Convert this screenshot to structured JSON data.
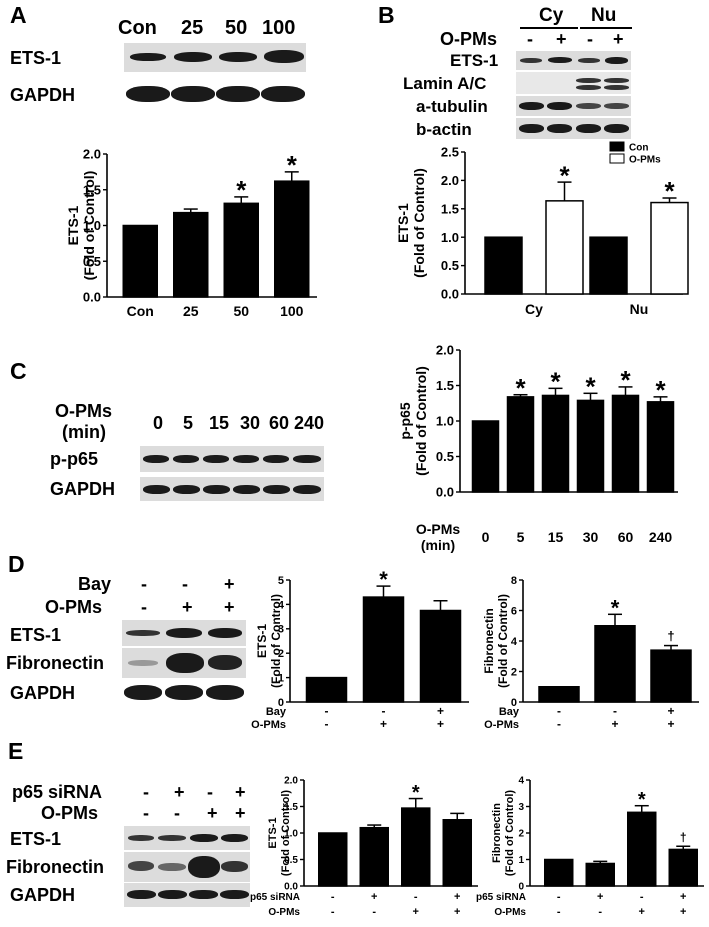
{
  "figure": {
    "panelA": {
      "letter": "A",
      "lanes": [
        "Con",
        "25",
        "50",
        "100"
      ],
      "blot_rows": [
        "ETS-1",
        "GAPDH"
      ]
    },
    "panelB": {
      "letter": "B",
      "fractions": [
        "Cy",
        "Nu"
      ],
      "treatment_label": "O-PMs",
      "signs": [
        "-",
        "+",
        "-",
        "+"
      ],
      "blot_rows": [
        "ETS-1",
        "Lamin A/C",
        "a-tubulin",
        "b-actin"
      ]
    },
    "panelC": {
      "letter": "C",
      "treatment_label": "O-PMs",
      "unit_label": "(min)",
      "lanes": [
        "0",
        "5",
        "15",
        "30",
        "60",
        "240"
      ],
      "blot_rows": [
        "p-p65",
        "GAPDH"
      ]
    },
    "panelD": {
      "letter": "D",
      "row_labels": [
        "Bay",
        "O-PMs"
      ],
      "bay_signs": [
        "-",
        "-",
        "+"
      ],
      "opms_signs": [
        "-",
        "+",
        "+"
      ],
      "blot_rows": [
        "ETS-1",
        "Fibronectin",
        "GAPDH"
      ]
    },
    "panelE": {
      "letter": "E",
      "row_labels": [
        "p65 siRNA",
        "O-PMs"
      ],
      "sirna_signs": [
        "-",
        "+",
        "-",
        "+"
      ],
      "opms_signs": [
        "-",
        "-",
        "+",
        "+"
      ],
      "blot_rows": [
        "ETS-1",
        "Fibronectin",
        "GAPDH"
      ]
    }
  },
  "chart_data": [
    {
      "id": "A",
      "type": "bar",
      "ylabel": "ETS-1\n(Fold of Control)",
      "ylim": [
        0,
        2.0
      ],
      "yticks": [
        "0.0",
        "0.5",
        "1.0",
        "1.5",
        "2.0"
      ],
      "categories": [
        "Con",
        "25",
        "50",
        "100"
      ],
      "values": [
        1.0,
        1.18,
        1.31,
        1.62
      ],
      "errors": [
        0,
        0.05,
        0.09,
        0.13
      ],
      "annotations": [
        "",
        "",
        "*",
        "*"
      ],
      "color": "#000000"
    },
    {
      "id": "B",
      "type": "bar",
      "ylabel": "ETS-1\n(Fold of Control)",
      "ylim": [
        0,
        2.5
      ],
      "yticks": [
        "0.0",
        "0.5",
        "1.0",
        "1.5",
        "2.0",
        "2.5"
      ],
      "categories": [
        "Cy",
        "Nu"
      ],
      "series": [
        {
          "name": "Con",
          "values": [
            1.0,
            1.0
          ],
          "errors": [
            0,
            0
          ],
          "annotations": [
            "",
            ""
          ],
          "fill": "#000000"
        },
        {
          "name": "O-PMs",
          "values": [
            1.64,
            1.61
          ],
          "errors": [
            0.33,
            0.08
          ],
          "annotations": [
            "*",
            "*"
          ],
          "fill": "#ffffff"
        }
      ],
      "legend": "top-right"
    },
    {
      "id": "C",
      "type": "bar",
      "ylabel": "p-p65\n(Fold of Control)",
      "ylim": [
        0,
        2.0
      ],
      "yticks": [
        "0.0",
        "0.5",
        "1.0",
        "1.5",
        "2.0"
      ],
      "categories": [
        "0",
        "5",
        "15",
        "30",
        "60",
        "240"
      ],
      "values": [
        1.0,
        1.34,
        1.36,
        1.29,
        1.36,
        1.27
      ],
      "errors": [
        0,
        0.03,
        0.1,
        0.1,
        0.12,
        0.07
      ],
      "annotations": [
        "",
        "*",
        "*",
        "*",
        "*",
        "*"
      ],
      "xrow_label": "O-PMs",
      "xrow_unit": "(min)",
      "color": "#000000"
    },
    {
      "id": "D1",
      "type": "bar",
      "ylabel": "ETS-1\n(Fold of Control)",
      "ylim": [
        0,
        5
      ],
      "yticks": [
        "0",
        "1",
        "2",
        "3",
        "4",
        "5"
      ],
      "values": [
        1.0,
        4.3,
        3.75
      ],
      "errors": [
        0,
        0.45,
        0.4
      ],
      "annotations": [
        "",
        "*",
        ""
      ],
      "rows": [
        {
          "label": "Bay",
          "signs": [
            "-",
            "-",
            "+"
          ]
        },
        {
          "label": "O-PMs",
          "signs": [
            "-",
            "+",
            "+"
          ]
        }
      ],
      "color": "#000000"
    },
    {
      "id": "D2",
      "type": "bar",
      "ylabel": "Fibronectin\n(Fold of Control)",
      "ylim": [
        0,
        8
      ],
      "yticks": [
        "0",
        "2",
        "4",
        "6",
        "8"
      ],
      "values": [
        1.0,
        5.0,
        3.4
      ],
      "errors": [
        0,
        0.75,
        0.3
      ],
      "annotations": [
        "",
        "*",
        "†"
      ],
      "rows": [
        {
          "label": "Bay",
          "signs": [
            "-",
            "-",
            "+"
          ]
        },
        {
          "label": "O-PMs",
          "signs": [
            "-",
            "+",
            "+"
          ]
        }
      ],
      "color": "#000000"
    },
    {
      "id": "E1",
      "type": "bar",
      "ylabel": "ETS-1\n(Fold of Control)",
      "ylim": [
        0,
        2.0
      ],
      "yticks": [
        "0.0",
        "0.5",
        "1.0",
        "1.5",
        "2.0"
      ],
      "values": [
        1.0,
        1.1,
        1.47,
        1.25
      ],
      "errors": [
        0,
        0.05,
        0.18,
        0.12
      ],
      "annotations": [
        "",
        "",
        "*",
        ""
      ],
      "rows": [
        {
          "label": "p65 siRNA",
          "signs": [
            "-",
            "+",
            "-",
            "+"
          ]
        },
        {
          "label": "O-PMs",
          "signs": [
            "-",
            "-",
            "+",
            "+"
          ]
        }
      ],
      "color": "#000000"
    },
    {
      "id": "E2",
      "type": "bar",
      "ylabel": "Fibronectin\n(Fold of Control)",
      "ylim": [
        0,
        4
      ],
      "yticks": [
        "0",
        "1",
        "2",
        "3",
        "4"
      ],
      "values": [
        1.0,
        0.85,
        2.78,
        1.38
      ],
      "errors": [
        0,
        0.08,
        0.25,
        0.12
      ],
      "annotations": [
        "",
        "",
        "*",
        "†"
      ],
      "rows": [
        {
          "label": "p65 siRNA",
          "signs": [
            "-",
            "+",
            "-",
            "+"
          ]
        },
        {
          "label": "O-PMs",
          "signs": [
            "-",
            "-",
            "+",
            "+"
          ]
        }
      ],
      "color": "#000000"
    }
  ]
}
